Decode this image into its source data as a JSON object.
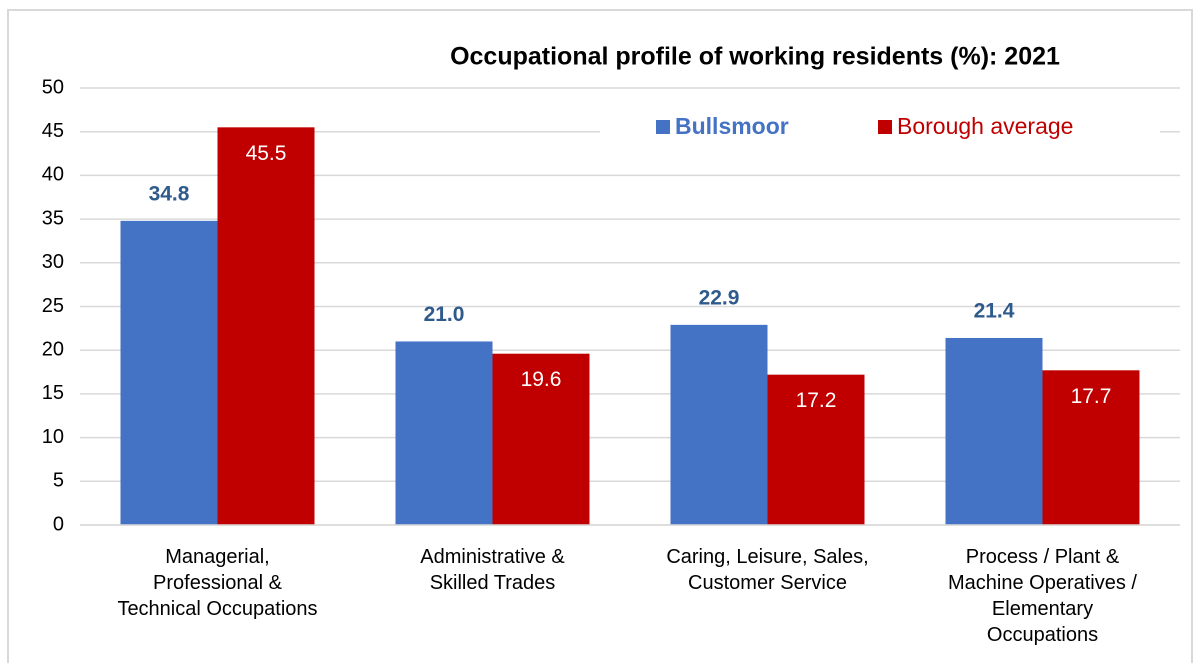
{
  "chart_data": {
    "type": "bar",
    "title": "Occupational profile of working residents (%):  2021",
    "categories": [
      "Managerial,\nProfessional &\nTechnical Occupations",
      "Administrative &\nSkilled Trades",
      "Caring, Leisure, Sales,\nCustomer Service",
      "Process / Plant &\nMachine Operatives /\nElementary\nOccupations"
    ],
    "series": [
      {
        "name": "Bullsmoor",
        "color": "#4472c4",
        "values": [
          34.8,
          21.0,
          22.9,
          21.4
        ],
        "value_labels": [
          "34.8",
          "21.0",
          "22.9",
          "21.4"
        ]
      },
      {
        "name": "Borough average",
        "color": "#c00000",
        "values": [
          45.5,
          19.6,
          17.2,
          17.7
        ],
        "value_labels": [
          "45.5",
          "19.6",
          "17.2",
          "17.7"
        ]
      }
    ],
    "ylim": [
      0,
      50
    ],
    "yticks": [
      0,
      5,
      10,
      15,
      20,
      25,
      30,
      35,
      40,
      45,
      50
    ],
    "grid": true,
    "legend": "top-right"
  }
}
